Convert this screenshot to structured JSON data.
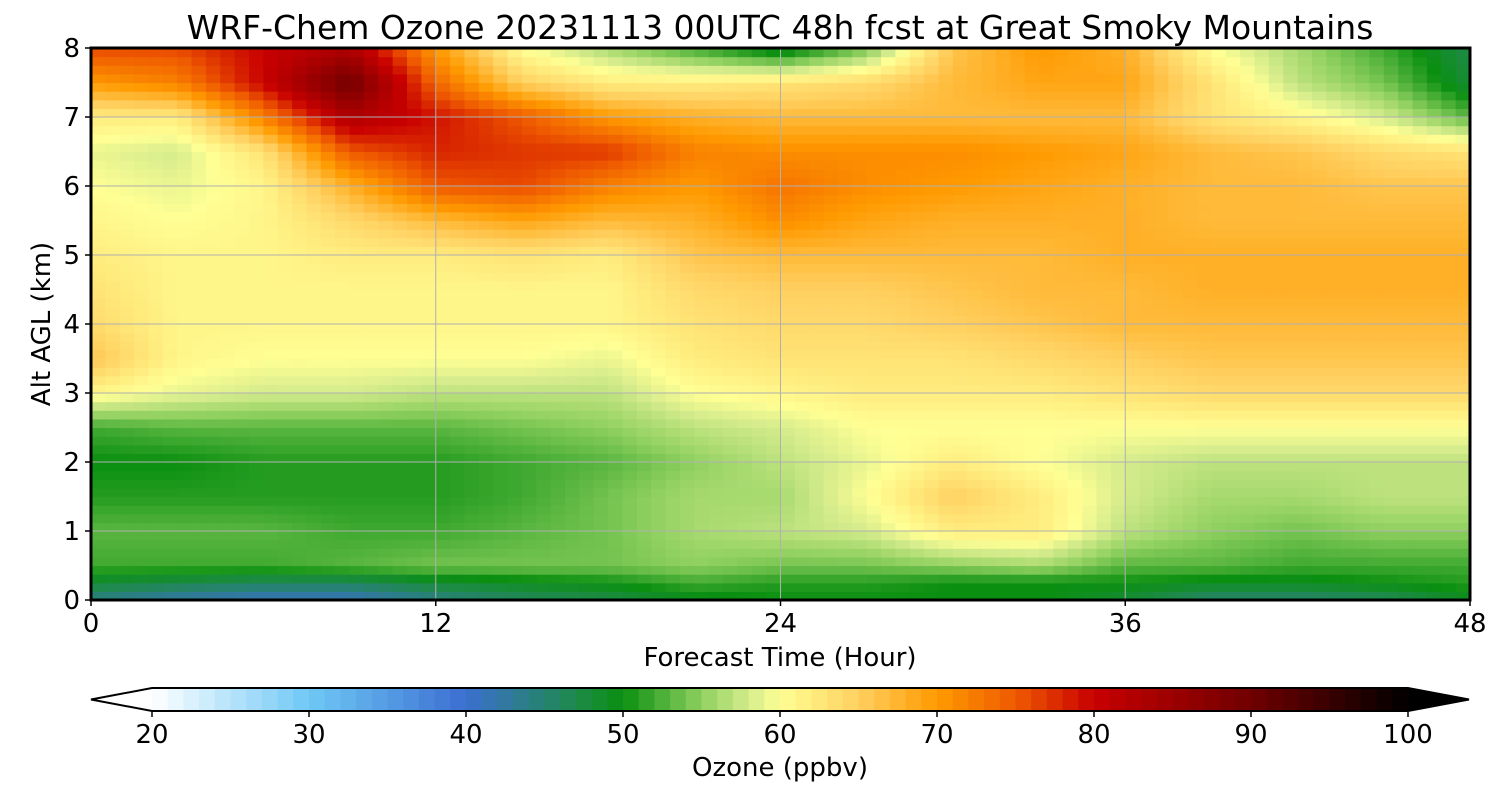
{
  "chart_data": {
    "type": "heatmap",
    "title": "WRF-Chem Ozone  20231113 00UTC 48h fcst at Great Smoky Mountains",
    "xlabel": "Forecast Time (Hour)",
    "ylabel": "Alt AGL (km)",
    "xlim": [
      0,
      48
    ],
    "ylim": [
      0,
      8
    ],
    "x_ticks": [
      "0",
      "12",
      "24",
      "36",
      "48"
    ],
    "y_ticks": [
      "0",
      "1",
      "2",
      "3",
      "4",
      "5",
      "6",
      "7",
      "8"
    ],
    "grid": true,
    "colorbar": {
      "label": "Ozone  (ppbv)",
      "range": [
        20,
        100
      ],
      "extend": "both",
      "ticks": [
        "20",
        "30",
        "40",
        "50",
        "60",
        "70",
        "80",
        "90",
        "100"
      ],
      "stops": [
        {
          "value": 20,
          "color": "#ffffff"
        },
        {
          "value": 30,
          "color": "#6fc8f5"
        },
        {
          "value": 40,
          "color": "#3b6fd1"
        },
        {
          "value": 47,
          "color": "#1e8a4a"
        },
        {
          "value": 50,
          "color": "#0a8f10"
        },
        {
          "value": 55,
          "color": "#8fd060"
        },
        {
          "value": 58,
          "color": "#d4eb8c"
        },
        {
          "value": 60,
          "color": "#ffff94"
        },
        {
          "value": 65,
          "color": "#ffd060"
        },
        {
          "value": 70,
          "color": "#ff9a00"
        },
        {
          "value": 75,
          "color": "#ef5a00"
        },
        {
          "value": 80,
          "color": "#c80000"
        },
        {
          "value": 90,
          "color": "#700000"
        },
        {
          "value": 100,
          "color": "#000000"
        }
      ]
    },
    "x": [
      0,
      3,
      6,
      9,
      12,
      15,
      18,
      21,
      24,
      27,
      30,
      33,
      36,
      39,
      42,
      45,
      48
    ],
    "y": [
      0,
      0.25,
      0.5,
      1,
      1.5,
      2,
      2.5,
      3,
      3.5,
      4,
      4.5,
      5,
      5.5,
      6,
      6.5,
      7,
      7.5,
      8
    ],
    "z": [
      [
        44,
        42,
        41,
        41,
        44,
        46,
        47,
        49,
        50,
        50,
        50,
        50,
        48,
        45,
        45,
        46,
        49
      ],
      [
        48,
        47,
        46,
        46,
        48,
        49,
        50,
        52,
        51,
        51,
        50,
        50,
        50,
        49,
        49,
        50,
        51
      ],
      [
        52,
        52,
        52,
        53,
        54,
        54,
        54,
        55,
        54,
        54,
        55,
        56,
        53,
        53,
        52,
        52,
        52
      ],
      [
        53,
        53,
        53,
        52,
        52,
        53,
        54,
        56,
        57,
        58,
        62,
        62,
        57,
        55,
        54,
        55,
        55
      ],
      [
        51,
        51,
        51,
        51,
        51,
        52,
        54,
        56,
        56,
        60,
        65,
        62,
        58,
        56,
        56,
        57,
        57
      ],
      [
        50,
        50,
        51,
        51,
        51,
        52,
        53,
        55,
        57,
        59,
        62,
        60,
        58,
        57,
        57,
        57,
        57
      ],
      [
        52,
        53,
        53,
        53,
        53,
        54,
        55,
        57,
        58,
        60,
        60,
        60,
        60,
        60,
        60,
        60,
        60
      ],
      [
        61,
        59,
        58,
        58,
        57,
        57,
        57,
        60,
        61,
        62,
        62,
        62,
        63,
        64,
        64,
        64,
        64
      ],
      [
        66,
        61,
        60,
        60,
        60,
        60,
        59,
        62,
        63,
        63,
        63,
        64,
        65,
        66,
        66,
        66,
        66
      ],
      [
        64,
        61,
        61,
        61,
        61,
        61,
        61,
        63,
        64,
        64,
        65,
        66,
        67,
        67,
        67,
        67,
        67
      ],
      [
        63,
        61,
        61,
        61,
        61,
        61,
        61,
        64,
        65,
        65,
        66,
        67,
        67,
        68,
        68,
        68,
        68
      ],
      [
        62,
        61,
        61,
        62,
        62,
        63,
        62,
        66,
        67,
        67,
        67,
        67,
        68,
        68,
        68,
        68,
        68
      ],
      [
        61,
        60,
        61,
        64,
        67,
        69,
        67,
        68,
        71,
        69,
        68,
        68,
        68,
        67,
        67,
        67,
        67
      ],
      [
        60,
        59,
        61,
        68,
        75,
        76,
        72,
        70,
        73,
        71,
        70,
        69,
        68,
        67,
        67,
        66,
        66
      ],
      [
        59,
        58,
        63,
        75,
        78,
        77,
        77,
        72,
        71,
        71,
        71,
        70,
        69,
        67,
        66,
        64,
        63
      ],
      [
        62,
        62,
        72,
        83,
        79,
        75,
        70,
        68,
        67,
        67,
        67,
        67,
        67,
        63,
        61,
        58,
        53
      ],
      [
        70,
        72,
        80,
        90,
        74,
        65,
        62,
        62,
        63,
        64,
        67,
        69,
        69,
        63,
        57,
        54,
        48
      ],
      [
        76,
        76,
        80,
        83,
        70,
        60,
        56,
        52,
        48,
        54,
        66,
        70,
        68,
        60,
        56,
        52,
        47
      ]
    ]
  }
}
